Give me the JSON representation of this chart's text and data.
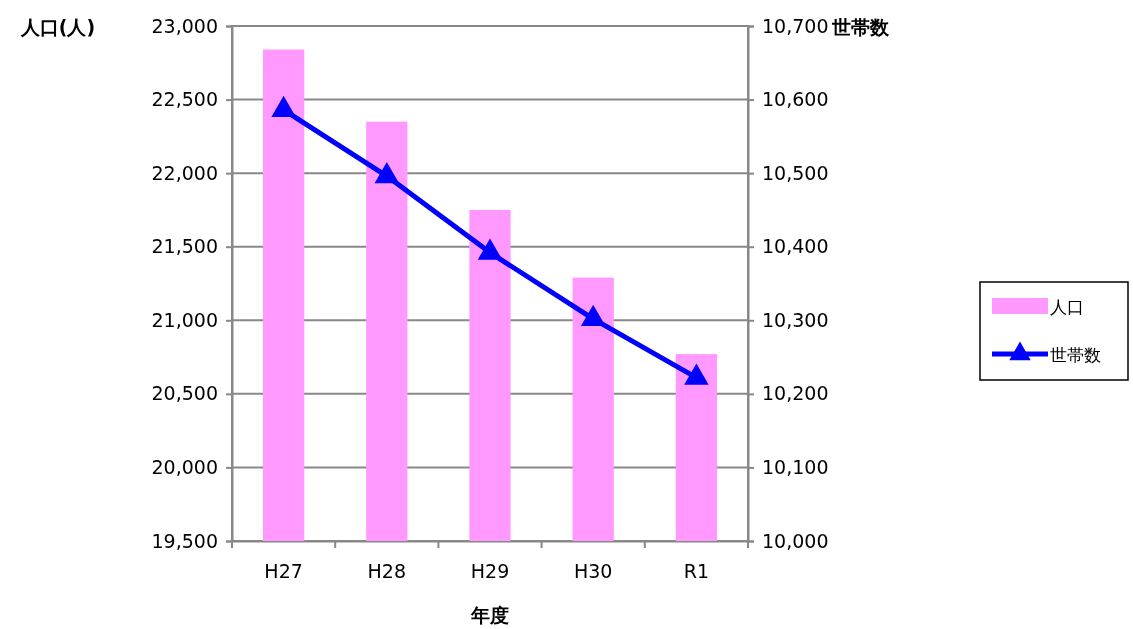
{
  "chart_data": {
    "type": "bar",
    "xlabel": "年度",
    "ylabel": "人口(人)",
    "y2label": "世帯数",
    "categories": [
      "H27",
      "H28",
      "H29",
      "H30",
      "R1"
    ],
    "series": [
      {
        "name": "人口",
        "color": "#ff99ff",
        "values": [
          22840,
          22350,
          21750,
          21290,
          20770
        ]
      },
      {
        "name": "世帯数",
        "type": "line",
        "axis": "y2",
        "color": "#0000ff",
        "marker": "triangle",
        "values": [
          10586,
          10496,
          10392,
          10302,
          10222
        ]
      }
    ],
    "ylim": [
      19500,
      23000
    ],
    "yticks": [
      {
        "value": 19500,
        "label": "19,500"
      },
      {
        "value": 20000,
        "label": "20,000"
      },
      {
        "value": 20500,
        "label": "20,500"
      },
      {
        "value": 21000,
        "label": "21,000"
      },
      {
        "value": 21500,
        "label": "21,500"
      },
      {
        "value": 22000,
        "label": "22,000"
      },
      {
        "value": 22500,
        "label": "22,500"
      },
      {
        "value": 23000,
        "label": "23,000"
      }
    ],
    "y2lim": [
      10000,
      10700
    ],
    "y2ticks": [
      {
        "value": 10000,
        "label": "10,000"
      },
      {
        "value": 10100,
        "label": "10,100"
      },
      {
        "value": 10200,
        "label": "10,200"
      },
      {
        "value": 10300,
        "label": "10,300"
      },
      {
        "value": 10400,
        "label": "10,400"
      },
      {
        "value": 10500,
        "label": "10,500"
      },
      {
        "value": 10600,
        "label": "10,600"
      },
      {
        "value": 10700,
        "label": "10,700"
      }
    ],
    "grid": "y",
    "legend": "right"
  }
}
